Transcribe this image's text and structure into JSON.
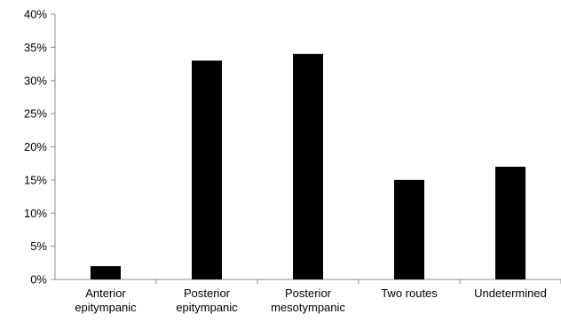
{
  "chart_data": {
    "type": "bar",
    "categories": [
      [
        "Anterior",
        "epitympanic"
      ],
      [
        "Posterior",
        "epitympanic"
      ],
      [
        "Posterior",
        "mesotympanic"
      ],
      [
        "Two routes"
      ],
      [
        "Undetermined"
      ]
    ],
    "values": [
      2,
      33,
      34,
      15,
      17
    ],
    "ylim": [
      0,
      40
    ],
    "yticks": [
      0,
      5,
      10,
      15,
      20,
      25,
      30,
      35,
      40
    ],
    "ytick_labels": [
      "0%",
      "5%",
      "10%",
      "15%",
      "20%",
      "25%",
      "30%",
      "35%",
      "40%"
    ],
    "grid": false,
    "legend": "none",
    "bar_color": "#000000",
    "axis_color": "#8c8c8c"
  }
}
